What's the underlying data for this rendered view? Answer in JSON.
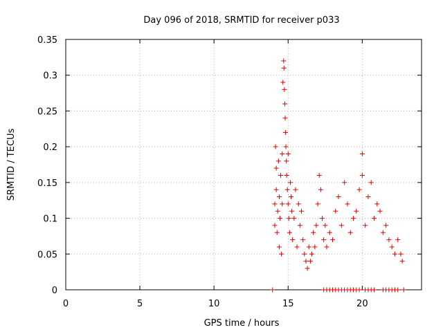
{
  "chart_data": {
    "type": "scatter",
    "title": "Day 096 of 2018, SRMTID for receiver p033",
    "xlabel": "GPS time / hours",
    "ylabel": "SRMTID / TECUs",
    "xlim": [
      0,
      24
    ],
    "ylim": [
      0,
      0.35
    ],
    "xticks": [
      0,
      5,
      10,
      15,
      20
    ],
    "xtick_labels": [
      "0",
      "5",
      "10",
      "15",
      "20"
    ],
    "yticks": [
      0,
      0.05,
      0.1,
      0.15,
      0.2,
      0.25,
      0.3,
      0.35
    ],
    "ytick_labels": [
      "0",
      "0.05",
      "0.1",
      "0.15",
      "0.2",
      "0.25",
      "0.3",
      "0.35"
    ],
    "grid": true,
    "marker": "plus",
    "color": "#dd0000",
    "series": [
      {
        "name": "SRMTID",
        "points": [
          [
            14.1,
            0.12
          ],
          [
            14.1,
            0.09
          ],
          [
            14.15,
            0.2
          ],
          [
            14.2,
            0.17
          ],
          [
            14.2,
            0.14
          ],
          [
            14.25,
            0.08
          ],
          [
            14.3,
            0.11
          ],
          [
            14.35,
            0.18
          ],
          [
            14.4,
            0.06
          ],
          [
            14.4,
            0.13
          ],
          [
            14.45,
            0.1
          ],
          [
            14.5,
            0.16
          ],
          [
            14.55,
            0.05
          ],
          [
            14.6,
            0.12
          ],
          [
            14.6,
            0.19
          ],
          [
            14.65,
            0.29
          ],
          [
            14.7,
            0.32
          ],
          [
            14.72,
            0.31
          ],
          [
            14.75,
            0.28
          ],
          [
            14.78,
            0.26
          ],
          [
            14.8,
            0.24
          ],
          [
            14.82,
            0.22
          ],
          [
            14.85,
            0.2
          ],
          [
            14.88,
            0.18
          ],
          [
            14.9,
            0.16
          ],
          [
            14.95,
            0.14
          ],
          [
            15.0,
            0.19
          ],
          [
            15.0,
            0.12
          ],
          [
            15.05,
            0.1
          ],
          [
            15.1,
            0.08
          ],
          [
            15.15,
            0.15
          ],
          [
            15.2,
            0.13
          ],
          [
            15.25,
            0.11
          ],
          [
            15.3,
            0.07
          ],
          [
            15.4,
            0.1
          ],
          [
            15.5,
            0.14
          ],
          [
            15.6,
            0.06
          ],
          [
            15.7,
            0.12
          ],
          [
            15.8,
            0.09
          ],
          [
            15.9,
            0.11
          ],
          [
            16.0,
            0.07
          ],
          [
            16.1,
            0.05
          ],
          [
            16.2,
            0.04
          ],
          [
            16.3,
            0.03
          ],
          [
            16.4,
            0.06
          ],
          [
            16.5,
            0.04
          ],
          [
            16.6,
            0.05
          ],
          [
            16.7,
            0.08
          ],
          [
            16.8,
            0.06
          ],
          [
            16.9,
            0.09
          ],
          [
            17.0,
            0.12
          ],
          [
            17.1,
            0.16
          ],
          [
            17.2,
            0.14
          ],
          [
            17.3,
            0.1
          ],
          [
            17.4,
            0.07
          ],
          [
            17.5,
            0.09
          ],
          [
            17.6,
            0.06
          ],
          [
            17.8,
            0.08
          ],
          [
            18.0,
            0.07
          ],
          [
            18.2,
            0.11
          ],
          [
            18.4,
            0.13
          ],
          [
            18.6,
            0.09
          ],
          [
            18.8,
            0.15
          ],
          [
            19.0,
            0.12
          ],
          [
            19.2,
            0.08
          ],
          [
            19.4,
            0.1
          ],
          [
            19.6,
            0.11
          ],
          [
            19.8,
            0.14
          ],
          [
            20.0,
            0.19
          ],
          [
            20.0,
            0.16
          ],
          [
            20.2,
            0.09
          ],
          [
            20.4,
            0.13
          ],
          [
            20.6,
            0.15
          ],
          [
            20.8,
            0.1
          ],
          [
            21.0,
            0.12
          ],
          [
            21.2,
            0.11
          ],
          [
            21.4,
            0.08
          ],
          [
            21.6,
            0.09
          ],
          [
            21.8,
            0.07
          ],
          [
            22.0,
            0.06
          ],
          [
            22.2,
            0.05
          ],
          [
            22.4,
            0.07
          ],
          [
            22.6,
            0.05
          ],
          [
            22.7,
            0.04
          ]
        ]
      },
      {
        "name": "zero",
        "points": [
          [
            13.95,
            0
          ],
          [
            17.4,
            0
          ],
          [
            17.6,
            0
          ],
          [
            17.8,
            0
          ],
          [
            18.0,
            0
          ],
          [
            18.2,
            0
          ],
          [
            18.4,
            0
          ],
          [
            18.6,
            0
          ],
          [
            18.8,
            0
          ],
          [
            19.0,
            0
          ],
          [
            19.2,
            0
          ],
          [
            19.4,
            0
          ],
          [
            19.6,
            0
          ],
          [
            19.8,
            0
          ],
          [
            20.2,
            0
          ],
          [
            20.4,
            0
          ],
          [
            20.6,
            0
          ],
          [
            20.8,
            0
          ],
          [
            21.4,
            0
          ],
          [
            21.6,
            0
          ],
          [
            21.8,
            0
          ],
          [
            22.0,
            0
          ],
          [
            22.2,
            0
          ],
          [
            22.4,
            0
          ],
          [
            22.8,
            0
          ]
        ]
      }
    ]
  }
}
